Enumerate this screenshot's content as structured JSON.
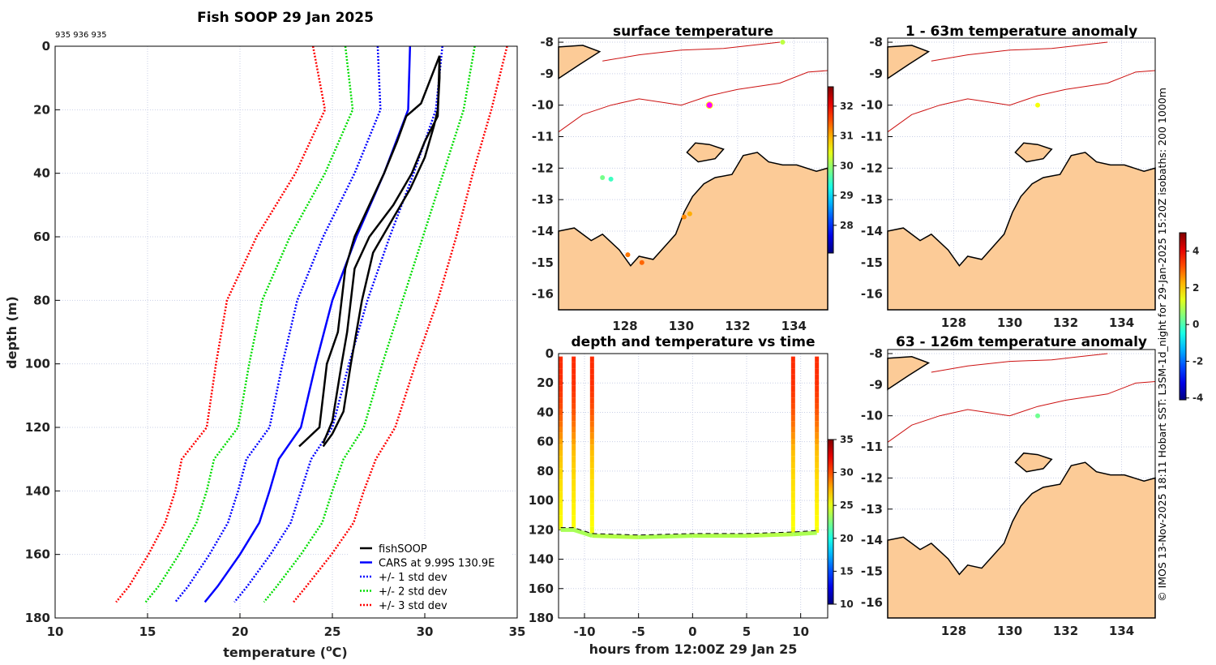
{
  "chart_data": [
    {
      "id": "profile",
      "type": "line",
      "title": "Fish SOOP 29 Jan 2025",
      "subtitle": "935 936 935",
      "xlabel_pre": "temperature (",
      "xlabel_sup": "o",
      "xlabel_post": "C)",
      "ylabel": "depth (m)",
      "xlim": [
        10,
        35
      ],
      "ylim": [
        0,
        180
      ],
      "xticks": [
        10,
        15,
        20,
        25,
        30,
        35
      ],
      "yticks": [
        0,
        20,
        40,
        60,
        80,
        100,
        120,
        140,
        160,
        180
      ],
      "grid": true,
      "legend_position": "bottom-right",
      "legend": [
        "fishSOOP",
        "CARS at 9.99S 130.9E",
        "+/- 1 std dev",
        "+/- 2 std dev",
        "+/- 3 std dev"
      ],
      "cars": {
        "depth": [
          0,
          20,
          40,
          60,
          80,
          100,
          120,
          130,
          140,
          150,
          160,
          170,
          175
        ],
        "temp": [
          29.2,
          29.1,
          27.8,
          26.3,
          25.0,
          24.1,
          23.3,
          22.1,
          21.6,
          21.05,
          20.0,
          18.8,
          18.1
        ],
        "std": [
          1.75,
          1.5,
          1.6,
          1.8,
          1.9,
          1.8,
          1.7,
          1.75,
          1.7,
          1.7,
          1.65,
          1.6,
          1.6
        ]
      },
      "fishsoop": [
        {
          "depth": [
            3,
            10,
            20,
            25,
            35,
            45,
            55,
            65,
            80,
            100,
            115,
            122,
            126
          ],
          "temp": [
            30.8,
            30.8,
            30.7,
            30.5,
            30.0,
            29.2,
            28.2,
            27.2,
            26.6,
            26.0,
            25.6,
            25.0,
            24.5
          ]
        },
        {
          "depth": [
            3,
            18,
            22,
            30,
            40,
            50,
            60,
            70,
            90,
            100,
            120,
            126
          ],
          "temp": [
            30.8,
            29.8,
            29.0,
            28.5,
            27.8,
            27.0,
            26.2,
            25.7,
            25.3,
            24.7,
            24.3,
            23.2
          ]
        },
        {
          "depth": [
            3,
            22,
            30,
            40,
            50,
            60,
            70,
            90,
            100,
            118,
            125
          ],
          "temp": [
            30.8,
            30.7,
            30.0,
            29.3,
            28.3,
            27.0,
            26.2,
            25.8,
            25.5,
            25.0,
            24.5
          ]
        }
      ],
      "colors": {
        "fishsoop": "#000000",
        "cars": "#0000ff",
        "std1": "#0000ff",
        "std2": "#00dd00",
        "std3": "#ff0000"
      }
    },
    {
      "id": "surface",
      "type": "heatmap",
      "title": "surface temperature",
      "xlim": [
        125.64,
        135.2
      ],
      "ylim": [
        -16.5,
        -7.87
      ],
      "xticks": [
        128,
        130,
        132,
        134
      ],
      "yticks": [
        -8,
        -9,
        -10,
        -11,
        -12,
        -13,
        -14,
        -15,
        -16
      ],
      "colorbar": {
        "range": [
          27.07,
          32.65
        ],
        "ticks": [
          28,
          29,
          30,
          31,
          32
        ]
      },
      "points": [
        {
          "lon": 131.0,
          "lat": -10.0,
          "v": 32.8
        },
        {
          "lon": 130.1,
          "lat": -13.55,
          "v": 31.2
        },
        {
          "lon": 130.3,
          "lat": -13.45,
          "v": 31.0
        },
        {
          "lon": 128.1,
          "lat": -14.75,
          "v": 31.3
        },
        {
          "lon": 128.6,
          "lat": -15.0,
          "v": 31.4
        },
        {
          "lon": 127.5,
          "lat": -12.35,
          "v": 29.5
        },
        {
          "lon": 133.6,
          "lat": -8.0,
          "v": 30.2
        },
        {
          "lon": 127.2,
          "lat": -12.3,
          "v": 29.8
        }
      ]
    },
    {
      "id": "anom1",
      "type": "heatmap",
      "title": "1 - 63m temperature anomaly",
      "xlim": [
        125.64,
        135.2
      ],
      "ylim": [
        -16.5,
        -7.87
      ],
      "xticks": [
        128,
        130,
        132,
        134
      ],
      "yticks": [
        -8,
        -9,
        -10,
        -11,
        -12,
        -13,
        -14,
        -15,
        -16
      ],
      "colorbar": {
        "range": [
          -4.1,
          5
        ],
        "ticks": [
          -4,
          -2,
          0,
          2,
          4
        ]
      },
      "points": [
        {
          "lon": 131.0,
          "lat": -10.0,
          "v": 1.5
        }
      ]
    },
    {
      "id": "anom2",
      "type": "heatmap",
      "title": "63 - 126m temperature anomaly",
      "xlim": [
        125.64,
        135.2
      ],
      "ylim": [
        -16.5,
        -7.87
      ],
      "xticks": [
        128,
        130,
        132,
        134
      ],
      "yticks": [
        -8,
        -9,
        -10,
        -11,
        -12,
        -13,
        -14,
        -15,
        -16
      ],
      "points": [
        {
          "lon": 131.0,
          "lat": -10.0,
          "v": 0.3
        }
      ]
    },
    {
      "id": "depthtime",
      "type": "scatter",
      "title": "depth and temperature vs time",
      "xlabel": "hours from 12:00Z 29 Jan 25",
      "xlim": [
        -12.4,
        12.5
      ],
      "ylim": [
        0,
        180
      ],
      "xticks": [
        -10,
        -5,
        0,
        5,
        10
      ],
      "yticks": [
        0,
        20,
        40,
        60,
        80,
        100,
        120,
        140,
        160,
        180
      ],
      "colorbar": {
        "range": [
          10,
          35
        ],
        "ticks": [
          10,
          15,
          20,
          25,
          30,
          35
        ]
      },
      "casts": [
        -12.2,
        -11.0,
        -9.3,
        9.3,
        11.5
      ],
      "bottom_track": {
        "hours": [
          -12.2,
          -11.0,
          -9.3,
          -5,
          0,
          5,
          9.3,
          11.5
        ],
        "depth": [
          120,
          120,
          124,
          125,
          124,
          124,
          123,
          122
        ],
        "temp": [
          23.5,
          23.5,
          23.8,
          23.6,
          23.7,
          23.8,
          23.6,
          23.9
        ]
      }
    }
  ],
  "land_color": "#fccb97",
  "footer": "© IMOS 13-Nov-2025 18:11 Hobart SST: L3SM-1d_night for 29-Jan-2025 15:20Z isobaths: 200  1000m"
}
